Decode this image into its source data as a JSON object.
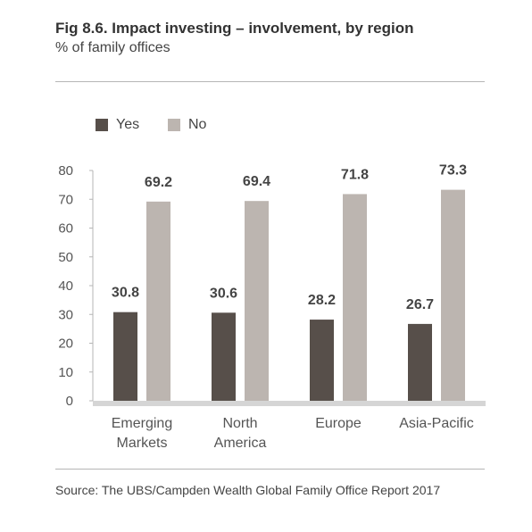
{
  "header": {
    "title": "Fig 8.6. Impact investing – involvement, by region",
    "subtitle": "% of family offices"
  },
  "footer": {
    "source": "Source: The UBS/Campden Wealth Global Family Office Report 2017"
  },
  "colors": {
    "yes": "#574f4a",
    "no": "#bcb5b0",
    "baseline": "#d5d5d5",
    "axis": "#b5b5b5"
  },
  "chart_data": {
    "type": "bar",
    "title": "Fig 8.6. Impact investing – involvement, by region",
    "subtitle": "% of family offices",
    "categories": [
      [
        "Emerging",
        "Markets"
      ],
      [
        "North",
        "America"
      ],
      [
        "Europe"
      ],
      [
        "Asia-Pacific"
      ]
    ],
    "series": [
      {
        "name": "Yes",
        "values": [
          30.8,
          30.6,
          28.2,
          26.7
        ]
      },
      {
        "name": "No",
        "values": [
          69.2,
          69.4,
          71.8,
          73.3
        ]
      }
    ],
    "ylim": [
      0,
      80
    ],
    "yticks": [
      "0",
      "10",
      "20",
      "30",
      "40",
      "50",
      "60",
      "70",
      "80"
    ],
    "data_labels": [
      [
        "30.8",
        "30.6",
        "28.2",
        "26.7"
      ],
      [
        "69.2",
        "69.4",
        "71.8",
        "73.3"
      ]
    ],
    "legend_position": "top-left",
    "grid": false
  }
}
